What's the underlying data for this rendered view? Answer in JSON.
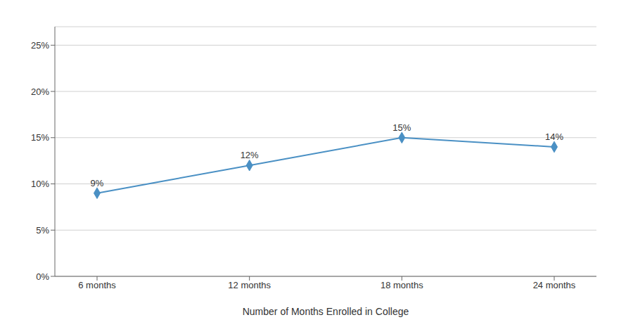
{
  "chart_data": {
    "type": "line",
    "xlabel": "Number of Months Enrolled in College",
    "categories": [
      "6 months",
      "12 months",
      "18 months",
      "24 months"
    ],
    "values": [
      0.09,
      0.12,
      0.15,
      0.14
    ],
    "value_labels": [
      "9%",
      "12%",
      "15%",
      "14%"
    ],
    "data_labels": true,
    "color": "#4A90C4",
    "marker": "diamond",
    "ylim": [
      0,
      0.27
    ],
    "yticks": [
      {
        "value": 0,
        "label": "0%"
      },
      {
        "value": 0.05,
        "label": "5%"
      },
      {
        "value": 0.1,
        "label": "10%"
      },
      {
        "value": 0.15,
        "label": "15%"
      },
      {
        "value": 0.2,
        "label": "20%"
      },
      {
        "value": 0.25,
        "label": "25%"
      }
    ],
    "grid": true
  }
}
